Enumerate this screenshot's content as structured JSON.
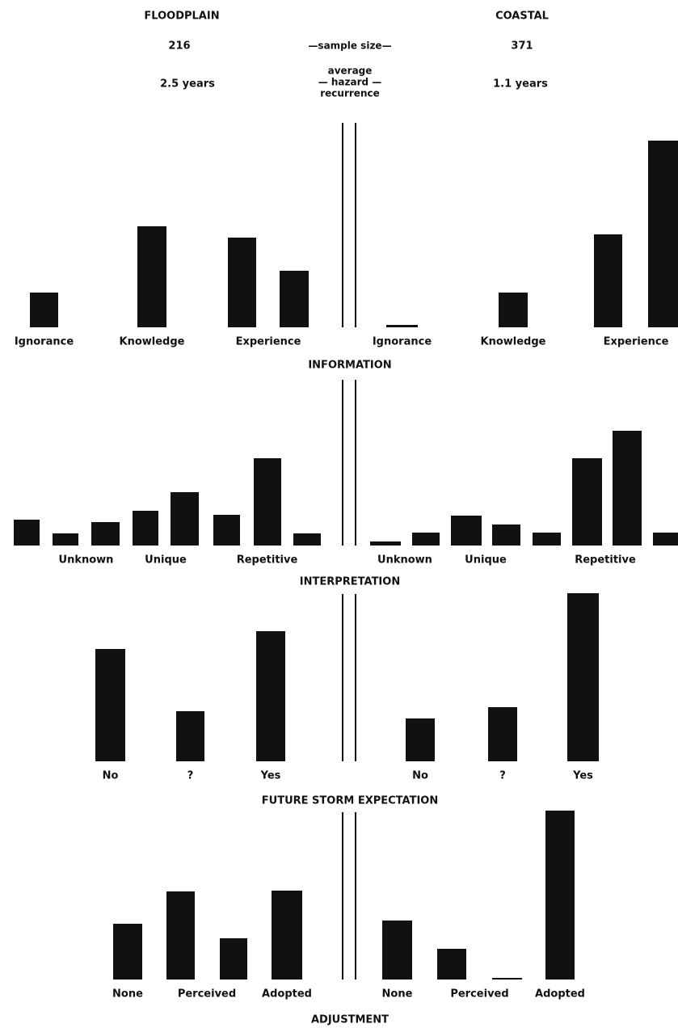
{
  "header": {
    "left_title": "FLOODPLAIN",
    "right_title": "COASTAL",
    "left_sample": "216",
    "sample_label": "—sample size—",
    "right_sample": "371",
    "recurrence_label": [
      "average",
      "— hazard —",
      "recurrence"
    ],
    "left_recurrence": "2.5 years",
    "right_recurrence": "1.1 years"
  },
  "chart_data": [
    {
      "type": "bar",
      "title": "INFORMATION",
      "color": "#111111",
      "left": {
        "categories": [
          "Ignorance",
          "Knowledge",
          "Experience"
        ],
        "values": [
          [
            43
          ],
          [
            125
          ],
          [
            111,
            70
          ]
        ]
      },
      "right": {
        "categories": [
          "Ignorance",
          "Knowledge",
          "Experience"
        ],
        "values": [
          [
            3
          ],
          [
            43
          ],
          [
            115,
            231
          ]
        ]
      }
    },
    {
      "type": "bar",
      "title": "INTERPRETATION",
      "color": "#111111",
      "left": {
        "categories": [
          null,
          "Unknown",
          "Unique",
          "Repetitive"
        ],
        "values": [
          [
            32
          ],
          [
            15,
            29
          ],
          [
            43,
            66
          ],
          [
            38,
            108,
            15
          ]
        ]
      },
      "right": {
        "categories": [
          "Unknown",
          "Unique",
          "Repetitive"
        ],
        "values": [
          [
            5,
            16
          ],
          [
            37,
            26
          ],
          [
            16,
            108,
            142,
            16
          ]
        ]
      }
    },
    {
      "type": "bar",
      "title": "FUTURE STORM EXPECTATION",
      "color": "#111111",
      "left": {
        "categories": [
          "No",
          "?",
          "Yes"
        ],
        "values": [
          [
            139
          ],
          [
            62
          ],
          [
            161
          ]
        ]
      },
      "right": {
        "categories": [
          "No",
          "?",
          "Yes"
        ],
        "values": [
          [
            53
          ],
          [
            67
          ],
          [
            208
          ]
        ]
      }
    },
    {
      "type": "bar",
      "title": "ADJUSTMENT",
      "color": "#111111",
      "left": {
        "categories": [
          "None",
          "Perceived",
          "Adopted"
        ],
        "values": [
          [
            69
          ],
          [
            109,
            51
          ],
          [
            110
          ]
        ]
      },
      "right": {
        "categories": [
          "None",
          "Perceived",
          "Adopted"
        ],
        "values": [
          [
            73
          ],
          [
            38,
            2
          ],
          [
            209
          ]
        ]
      }
    }
  ]
}
